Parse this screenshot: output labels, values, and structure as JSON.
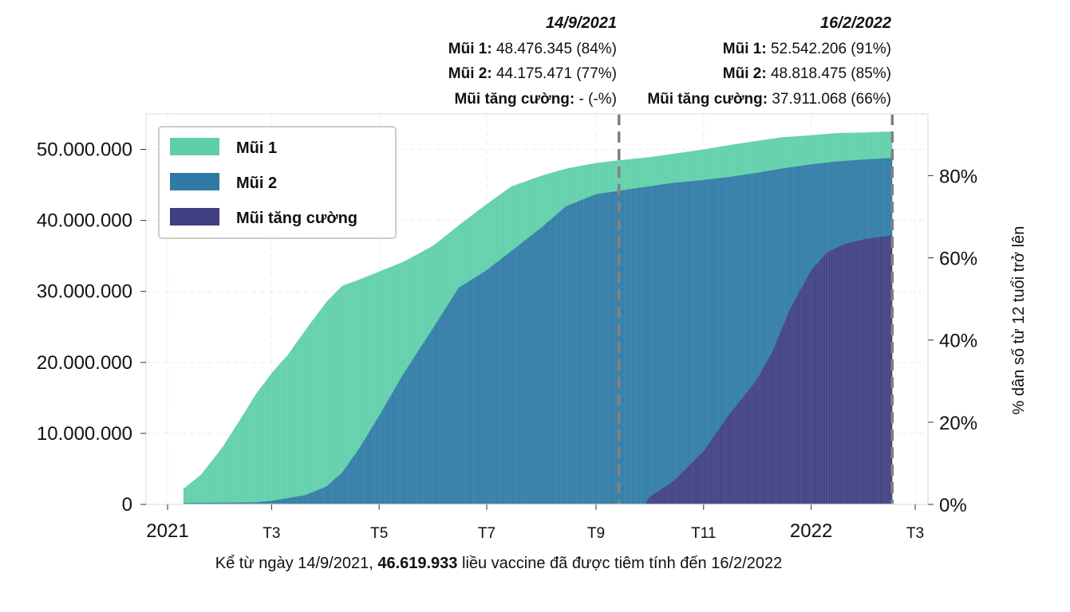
{
  "chart_data": {
    "type": "area",
    "stacked": false,
    "x_start": "2021-01-01",
    "x_end": "2022-03-01",
    "ylim": [
      0,
      55000000
    ],
    "y2lim": [
      0,
      95
    ],
    "grid": true,
    "legend_position": "top-left",
    "ylabel": "",
    "y2label": "% dân số từ 12 tuổi trở lên",
    "yticks": [
      {
        "value": 0,
        "label": "0"
      },
      {
        "value": 10000000,
        "label": "10.000.000"
      },
      {
        "value": 20000000,
        "label": "20.000.000"
      },
      {
        "value": 30000000,
        "label": "30.000.000"
      },
      {
        "value": 40000000,
        "label": "40.000.000"
      },
      {
        "value": 50000000,
        "label": "50.000.000"
      }
    ],
    "y2ticks": [
      {
        "value": 0,
        "label": "0%"
      },
      {
        "value": 20,
        "label": "20%"
      },
      {
        "value": 40,
        "label": "40%"
      },
      {
        "value": 60,
        "label": "60%"
      },
      {
        "value": 80,
        "label": "80%"
      }
    ],
    "xticks": [
      {
        "date": "2021-01-01",
        "label": "2021",
        "major": true
      },
      {
        "date": "2021-03-01",
        "label": "T3",
        "major": false
      },
      {
        "date": "2021-05-01",
        "label": "T5",
        "major": false
      },
      {
        "date": "2021-07-01",
        "label": "T7",
        "major": false
      },
      {
        "date": "2021-09-01",
        "label": "T9",
        "major": false
      },
      {
        "date": "2021-11-01",
        "label": "T11",
        "major": false
      },
      {
        "date": "2022-01-01",
        "label": "2022",
        "major": true
      },
      {
        "date": "2022-03-01",
        "label": "T3",
        "major": false
      }
    ],
    "series": [
      {
        "name": "Mũi 1",
        "color": "#5fcfaa",
        "points": [
          [
            "2021-01-10",
            2200000
          ],
          [
            "2021-01-20",
            4200000
          ],
          [
            "2021-02-01",
            8000000
          ],
          [
            "2021-02-10",
            11500000
          ],
          [
            "2021-02-20",
            15500000
          ],
          [
            "2021-03-01",
            18500000
          ],
          [
            "2021-03-10",
            21000000
          ],
          [
            "2021-03-20",
            24500000
          ],
          [
            "2021-04-01",
            28500000
          ],
          [
            "2021-04-10",
            30800000
          ],
          [
            "2021-04-20",
            31700000
          ],
          [
            "2021-05-01",
            32800000
          ],
          [
            "2021-05-15",
            34200000
          ],
          [
            "2021-06-01",
            36500000
          ],
          [
            "2021-06-15",
            39300000
          ],
          [
            "2021-07-01",
            42300000
          ],
          [
            "2021-07-15",
            44800000
          ],
          [
            "2021-08-01",
            46300000
          ],
          [
            "2021-08-15",
            47300000
          ],
          [
            "2021-09-01",
            48100000
          ],
          [
            "2021-09-14",
            48476345
          ],
          [
            "2021-10-01",
            48900000
          ],
          [
            "2021-10-15",
            49400000
          ],
          [
            "2021-11-01",
            50000000
          ],
          [
            "2021-11-15",
            50600000
          ],
          [
            "2021-12-01",
            51200000
          ],
          [
            "2021-12-15",
            51700000
          ],
          [
            "2022-01-01",
            52000000
          ],
          [
            "2022-01-15",
            52300000
          ],
          [
            "2022-02-01",
            52400000
          ],
          [
            "2022-02-16",
            52542206
          ]
        ]
      },
      {
        "name": "Mũi 2",
        "color": "#2f7ba6",
        "points": [
          [
            "2021-01-10",
            200000
          ],
          [
            "2021-02-01",
            250000
          ],
          [
            "2021-02-20",
            300000
          ],
          [
            "2021-03-01",
            500000
          ],
          [
            "2021-03-20",
            1300000
          ],
          [
            "2021-04-01",
            2500000
          ],
          [
            "2021-04-10",
            4500000
          ],
          [
            "2021-04-20",
            8000000
          ],
          [
            "2021-05-01",
            12500000
          ],
          [
            "2021-05-15",
            18500000
          ],
          [
            "2021-06-01",
            25000000
          ],
          [
            "2021-06-15",
            30500000
          ],
          [
            "2021-07-01",
            33000000
          ],
          [
            "2021-07-15",
            35700000
          ],
          [
            "2021-08-01",
            39000000
          ],
          [
            "2021-08-15",
            42000000
          ],
          [
            "2021-09-01",
            43700000
          ],
          [
            "2021-09-14",
            44175471
          ],
          [
            "2021-10-01",
            44800000
          ],
          [
            "2021-10-15",
            45300000
          ],
          [
            "2021-11-01",
            45700000
          ],
          [
            "2021-11-15",
            46100000
          ],
          [
            "2021-12-01",
            46700000
          ],
          [
            "2021-12-15",
            47300000
          ],
          [
            "2022-01-01",
            47900000
          ],
          [
            "2022-01-15",
            48300000
          ],
          [
            "2022-02-01",
            48600000
          ],
          [
            "2022-02-16",
            48818475
          ]
        ]
      },
      {
        "name": "Mũi tăng cường",
        "color": "#3f3f82",
        "points": [
          [
            "2021-09-29",
            0
          ],
          [
            "2021-10-01",
            1000000
          ],
          [
            "2021-10-15",
            3300000
          ],
          [
            "2021-11-01",
            7500000
          ],
          [
            "2021-11-15",
            12500000
          ],
          [
            "2021-12-01",
            17500000
          ],
          [
            "2021-12-10",
            21500000
          ],
          [
            "2021-12-20",
            27500000
          ],
          [
            "2022-01-01",
            33000000
          ],
          [
            "2022-01-10",
            35500000
          ],
          [
            "2022-01-20",
            36700000
          ],
          [
            "2022-02-01",
            37400000
          ],
          [
            "2022-02-16",
            37911068
          ]
        ]
      }
    ],
    "annotations": [
      {
        "date": "2021-09-14",
        "label": "14/9/2021",
        "lines": [
          {
            "key": "Mũi 1:",
            "value": "48.476.345 (84%)"
          },
          {
            "key": "Mũi 2:",
            "value": "44.175.471 (77%)"
          },
          {
            "key": "Mũi tăng cường:",
            "value": "- (-%)"
          }
        ]
      },
      {
        "date": "2022-02-16",
        "label": "16/2/2022",
        "lines": [
          {
            "key": "Mũi 1:",
            "value": "52.542.206 (91%)"
          },
          {
            "key": "Mũi 2:",
            "value": "48.818.475 (85%)"
          },
          {
            "key": "Mũi tăng cường:",
            "value": "37.911.068 (66%)"
          }
        ]
      }
    ]
  },
  "caption": {
    "prefix": "Kể từ ngày 14/9/2021, ",
    "highlight": "46.619.933",
    "suffix": " liều vaccine đã được tiêm tính đến 16/2/2022"
  }
}
